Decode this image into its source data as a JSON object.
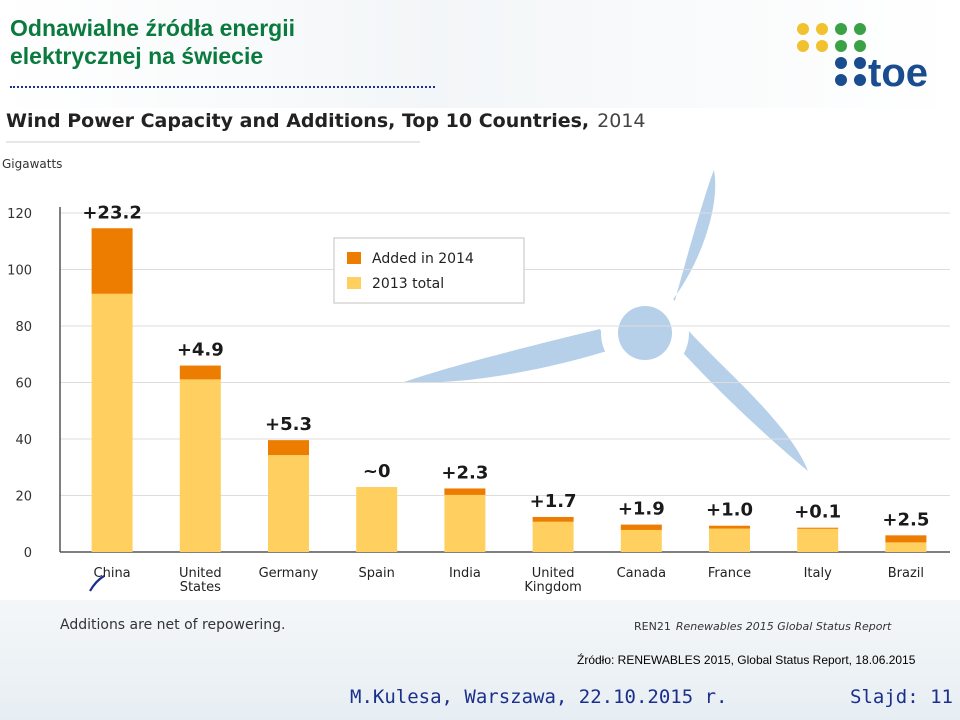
{
  "slide": {
    "title_line1": "Odnawialne źródła energii",
    "title_line2": "elektrycznej na świecie",
    "source": "Źródło: RENEWABLES 2015, Global Status Report, 18.06.2015",
    "author": "M.Kulesa, Warszawa, 22.10.2015 r.",
    "slide_number": "Slajd: 11",
    "logo_text": "toe"
  },
  "colors": {
    "title": "#0a7a3e",
    "added": "#ed7d00",
    "total": "#ffd060",
    "turbine": "#b6d0ea",
    "footer_text": "#1b2f8c"
  },
  "chart_data": {
    "type": "bar",
    "stacked": true,
    "title_bold": "Wind Power Capacity and Additions, Top 10 Countries,",
    "title_year": "2014",
    "ylabel": "Gigawatts",
    "ylim": [
      0,
      120
    ],
    "yticks": [
      0,
      20,
      40,
      60,
      80,
      100,
      120
    ],
    "categories": [
      "China",
      "United\nStates",
      "Germany",
      "Spain",
      "India",
      "United\nKingdom",
      "Canada",
      "France",
      "Italy",
      "Brazil"
    ],
    "series": [
      {
        "name": "2013 total",
        "values": [
          91.4,
          61.1,
          34.3,
          23.0,
          20.2,
          10.7,
          7.8,
          8.3,
          8.5,
          3.4
        ]
      },
      {
        "name": "Added in 2014",
        "values": [
          23.2,
          4.9,
          5.3,
          0.0,
          2.3,
          1.7,
          1.9,
          1.0,
          0.1,
          2.5
        ]
      }
    ],
    "data_labels": [
      "+23.2",
      "+4.9",
      "+5.3",
      "~0",
      "+2.3",
      "+1.7",
      "+1.9",
      "+1.0",
      "+0.1",
      "+2.5"
    ],
    "legend": [
      "Added in 2014",
      "2013 total"
    ],
    "note": "Additions are net of repowering.",
    "credit_prefix": "REN21",
    "credit": "Renewables 2015 Global Status Report"
  }
}
